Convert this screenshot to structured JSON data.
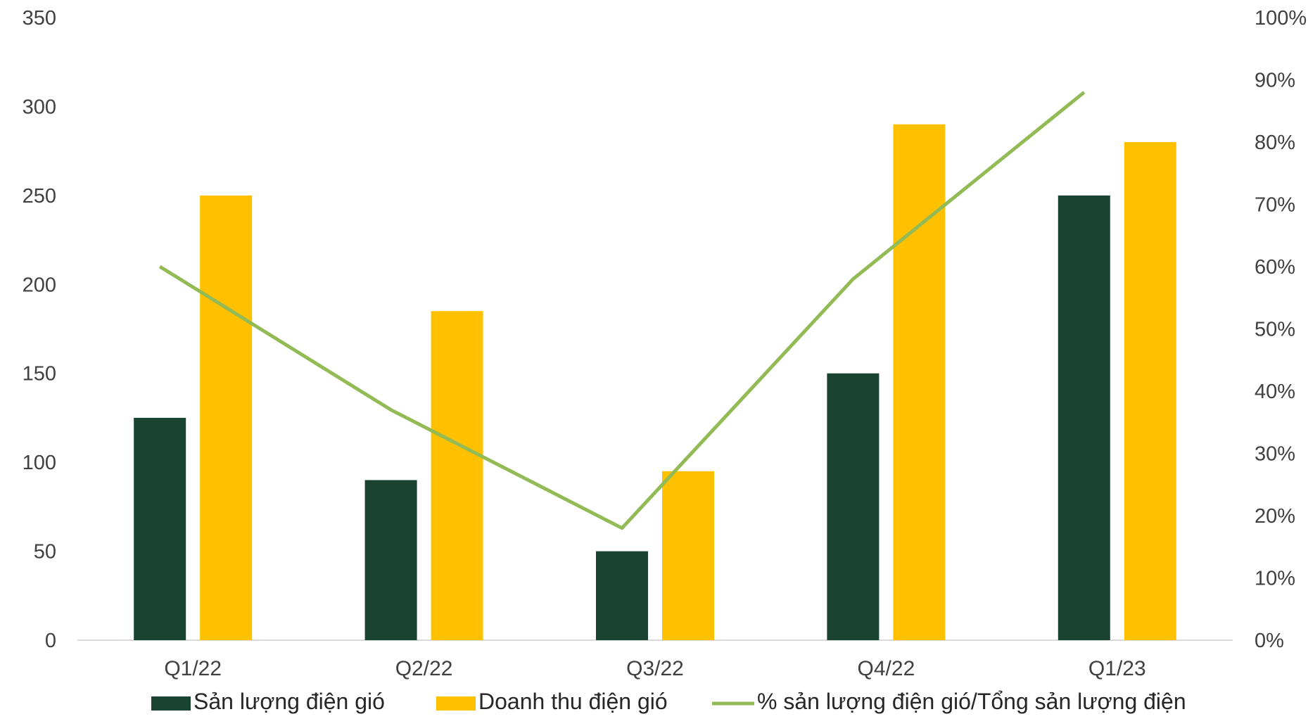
{
  "chart_data": {
    "type": "bar",
    "categories": [
      "Q1/22",
      "Q2/22",
      "Q3/22",
      "Q4/22",
      "Q1/23"
    ],
    "series": [
      {
        "name": "Sản lượng điện gió",
        "type": "bar",
        "axis": "left",
        "color": "#1b4332",
        "values": [
          125,
          90,
          50,
          150,
          250
        ]
      },
      {
        "name": "Doanh thu điện gió",
        "type": "bar",
        "axis": "left",
        "color": "#ffc000",
        "values": [
          250,
          185,
          95,
          290,
          280
        ]
      },
      {
        "name": "% sản lượng điện gió/Tổng sản lượng điện",
        "type": "line",
        "axis": "right",
        "color": "#92bb55",
        "values": [
          0.6,
          0.37,
          0.18,
          0.58,
          0.88
        ]
      }
    ],
    "y_left": {
      "range": [
        0,
        350
      ],
      "ticks": [
        0,
        50,
        100,
        150,
        200,
        250,
        300,
        350
      ]
    },
    "y_right": {
      "range": [
        0,
        1
      ],
      "ticks": [
        0,
        0.1,
        0.2,
        0.3,
        0.4,
        0.5,
        0.6,
        0.7,
        0.8,
        0.9,
        1.0
      ],
      "tick_labels": [
        "0%",
        "10%",
        "20%",
        "30%",
        "40%",
        "50%",
        "60%",
        "70%",
        "80%",
        "90%",
        "100%"
      ]
    },
    "grid": false,
    "legend_position": "bottom"
  }
}
